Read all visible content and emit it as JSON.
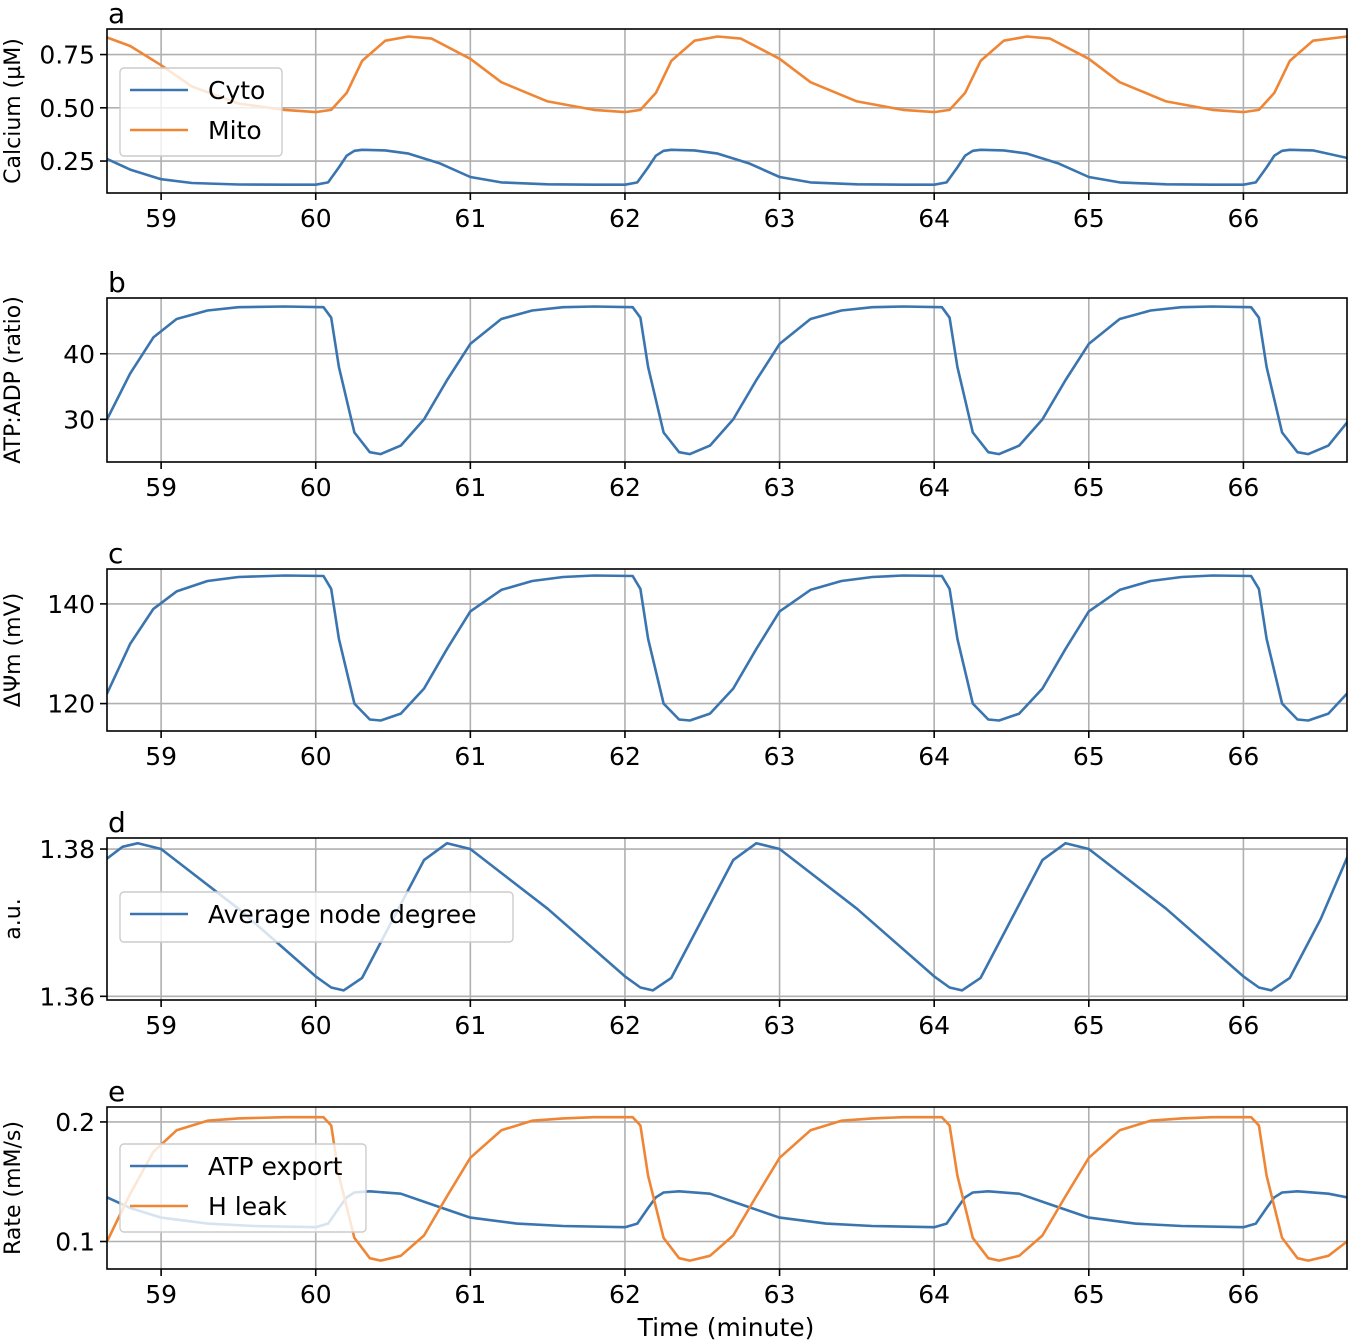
{
  "figure": {
    "xlabel": "Time (minute)",
    "colors": {
      "blue": "#3a75af",
      "orange": "#ef8636",
      "grid": "#b0b0b0"
    }
  },
  "chart_data": [
    {
      "panel": "a",
      "type": "line",
      "ylabel": "Calcium (µM)",
      "xlim": [
        58.65,
        66.67
      ],
      "ylim": [
        0.1,
        0.87
      ],
      "xticks": [
        59,
        60,
        61,
        62,
        63,
        64,
        65,
        66
      ],
      "yticks": [
        0.25,
        0.5,
        0.75
      ],
      "ytick_labels": [
        "0.25",
        "0.50",
        "0.75"
      ],
      "grid": true,
      "legend": "upper-left",
      "series": [
        {
          "name": "Cyto",
          "color": "#3a75af",
          "x": [
            58.65,
            58.8,
            59.0,
            59.2,
            59.5,
            59.8,
            60.0,
            60.08,
            60.15,
            60.2,
            60.25,
            60.3,
            60.45,
            60.6,
            60.8,
            61.0,
            61.2,
            61.5,
            61.8,
            62.0,
            62.08,
            62.15,
            62.2,
            62.25,
            62.3,
            62.45,
            62.6,
            62.8,
            63.0,
            63.2,
            63.5,
            63.8,
            64.0,
            64.08,
            64.15,
            64.2,
            64.25,
            64.3,
            64.45,
            64.6,
            64.8,
            65.0,
            65.2,
            65.5,
            65.8,
            66.0,
            66.08,
            66.15,
            66.2,
            66.25,
            66.3,
            66.45,
            66.67
          ],
          "y": [
            0.26,
            0.21,
            0.165,
            0.147,
            0.14,
            0.139,
            0.139,
            0.15,
            0.22,
            0.275,
            0.298,
            0.303,
            0.3,
            0.285,
            0.24,
            0.175,
            0.15,
            0.141,
            0.139,
            0.139,
            0.15,
            0.22,
            0.275,
            0.298,
            0.303,
            0.3,
            0.285,
            0.24,
            0.175,
            0.15,
            0.141,
            0.139,
            0.139,
            0.15,
            0.22,
            0.275,
            0.298,
            0.303,
            0.3,
            0.285,
            0.24,
            0.175,
            0.15,
            0.141,
            0.139,
            0.139,
            0.15,
            0.22,
            0.275,
            0.298,
            0.303,
            0.3,
            0.265
          ]
        },
        {
          "name": "Mito",
          "color": "#ef8636",
          "x": [
            58.65,
            58.8,
            59.0,
            59.2,
            59.5,
            59.8,
            60.0,
            60.1,
            60.2,
            60.3,
            60.45,
            60.6,
            60.75,
            61.0,
            61.2,
            61.5,
            61.8,
            62.0,
            62.1,
            62.2,
            62.3,
            62.45,
            62.6,
            62.75,
            63.0,
            63.2,
            63.5,
            63.8,
            64.0,
            64.1,
            64.2,
            64.3,
            64.45,
            64.6,
            64.75,
            65.0,
            65.2,
            65.5,
            65.8,
            66.0,
            66.1,
            66.2,
            66.3,
            66.45,
            66.67
          ],
          "y": [
            0.83,
            0.79,
            0.7,
            0.6,
            0.52,
            0.49,
            0.48,
            0.49,
            0.57,
            0.72,
            0.815,
            0.835,
            0.825,
            0.73,
            0.62,
            0.53,
            0.49,
            0.48,
            0.49,
            0.57,
            0.72,
            0.815,
            0.835,
            0.825,
            0.73,
            0.62,
            0.53,
            0.49,
            0.48,
            0.49,
            0.57,
            0.72,
            0.815,
            0.835,
            0.825,
            0.73,
            0.62,
            0.53,
            0.49,
            0.48,
            0.49,
            0.57,
            0.72,
            0.815,
            0.835
          ]
        }
      ]
    },
    {
      "panel": "b",
      "type": "line",
      "ylabel": "ATP:ADP (ratio)",
      "xlim": [
        58.65,
        66.67
      ],
      "ylim": [
        23.5,
        48.5
      ],
      "xticks": [
        59,
        60,
        61,
        62,
        63,
        64,
        65,
        66
      ],
      "yticks": [
        30,
        40
      ],
      "ytick_labels": [
        "30",
        "40"
      ],
      "grid": true,
      "series": [
        {
          "name": "",
          "color": "#3a75af",
          "x": [
            58.65,
            58.8,
            58.95,
            59.1,
            59.3,
            59.5,
            59.8,
            60.05,
            60.1,
            60.15,
            60.25,
            60.35,
            60.42,
            60.55,
            60.7,
            60.85,
            61.0,
            61.2,
            61.4,
            61.6,
            61.8,
            62.05,
            62.1,
            62.15,
            62.25,
            62.35,
            62.42,
            62.55,
            62.7,
            62.85,
            63.0,
            63.2,
            63.4,
            63.6,
            63.8,
            64.05,
            64.1,
            64.15,
            64.25,
            64.35,
            64.42,
            64.55,
            64.7,
            64.85,
            65.0,
            65.2,
            65.4,
            65.6,
            65.8,
            66.05,
            66.1,
            66.15,
            66.25,
            66.35,
            66.42,
            66.55,
            66.67
          ],
          "y": [
            30,
            37,
            42.5,
            45.3,
            46.6,
            47.1,
            47.2,
            47.1,
            45.5,
            38,
            28,
            25,
            24.7,
            26,
            30,
            36,
            41.5,
            45.3,
            46.6,
            47.1,
            47.2,
            47.1,
            45.5,
            38,
            28,
            25,
            24.7,
            26,
            30,
            36,
            41.5,
            45.3,
            46.6,
            47.1,
            47.2,
            47.1,
            45.5,
            38,
            28,
            25,
            24.7,
            26,
            30,
            36,
            41.5,
            45.3,
            46.6,
            47.1,
            47.2,
            47.1,
            45.5,
            38,
            28,
            25,
            24.7,
            26,
            29.5
          ]
        }
      ]
    },
    {
      "panel": "c",
      "type": "line",
      "ylabel": "ΔΨm (mV)",
      "xlim": [
        58.65,
        66.67
      ],
      "ylim": [
        114.5,
        147
      ],
      "xticks": [
        59,
        60,
        61,
        62,
        63,
        64,
        65,
        66
      ],
      "yticks": [
        120,
        140
      ],
      "ytick_labels": [
        "120",
        "140"
      ],
      "grid": true,
      "series": [
        {
          "name": "",
          "color": "#3a75af",
          "x": [
            58.65,
            58.8,
            58.95,
            59.1,
            59.3,
            59.5,
            59.8,
            60.05,
            60.1,
            60.15,
            60.25,
            60.35,
            60.42,
            60.55,
            60.7,
            60.85,
            61.0,
            61.2,
            61.4,
            61.6,
            61.8,
            62.05,
            62.1,
            62.15,
            62.25,
            62.35,
            62.42,
            62.55,
            62.7,
            62.85,
            63.0,
            63.2,
            63.4,
            63.6,
            63.8,
            64.05,
            64.1,
            64.15,
            64.25,
            64.35,
            64.42,
            64.55,
            64.7,
            64.85,
            65.0,
            65.2,
            65.4,
            65.6,
            65.8,
            66.05,
            66.1,
            66.15,
            66.25,
            66.35,
            66.42,
            66.55,
            66.67
          ],
          "y": [
            122,
            132,
            139,
            142.5,
            144.6,
            145.4,
            145.7,
            145.6,
            143,
            133,
            120,
            116.8,
            116.6,
            118,
            123,
            131,
            138.5,
            142.8,
            144.6,
            145.4,
            145.7,
            145.6,
            143,
            133,
            120,
            116.8,
            116.6,
            118,
            123,
            131,
            138.5,
            142.8,
            144.6,
            145.4,
            145.7,
            145.6,
            143,
            133,
            120,
            116.8,
            116.6,
            118,
            123,
            131,
            138.5,
            142.8,
            144.6,
            145.4,
            145.7,
            145.6,
            143,
            133,
            120,
            116.8,
            116.6,
            118,
            122
          ]
        }
      ]
    },
    {
      "panel": "d",
      "type": "line",
      "ylabel": "a.u.",
      "xlim": [
        58.65,
        66.67
      ],
      "ylim": [
        1.3595,
        1.3815
      ],
      "xticks": [
        59,
        60,
        61,
        62,
        63,
        64,
        65,
        66
      ],
      "yticks": [
        1.36,
        1.38
      ],
      "ytick_labels": [
        "1.36",
        "1.38"
      ],
      "grid": true,
      "legend": "center-left",
      "series": [
        {
          "name": "Average node degree",
          "color": "#3a75af",
          "x": [
            58.65,
            58.75,
            58.85,
            59.0,
            59.5,
            60.0,
            60.1,
            60.18,
            60.3,
            60.5,
            60.7,
            60.85,
            61.0,
            61.5,
            62.0,
            62.1,
            62.18,
            62.3,
            62.5,
            62.7,
            62.85,
            63.0,
            63.5,
            64.0,
            64.1,
            64.18,
            64.3,
            64.5,
            64.7,
            64.85,
            65.0,
            65.5,
            66.0,
            66.1,
            66.18,
            66.3,
            66.5,
            66.67
          ],
          "y": [
            1.3787,
            1.3803,
            1.3808,
            1.38,
            1.3719,
            1.3627,
            1.3612,
            1.3608,
            1.3625,
            1.3705,
            1.3785,
            1.3808,
            1.38,
            1.3719,
            1.3627,
            1.3612,
            1.3608,
            1.3625,
            1.3705,
            1.3785,
            1.3808,
            1.38,
            1.3719,
            1.3627,
            1.3612,
            1.3608,
            1.3625,
            1.3705,
            1.3785,
            1.3808,
            1.38,
            1.3719,
            1.3627,
            1.3612,
            1.3608,
            1.3625,
            1.3705,
            1.3788
          ]
        }
      ]
    },
    {
      "panel": "e",
      "type": "line",
      "ylabel": "Rate (mM/s)",
      "xlim": [
        58.65,
        66.67
      ],
      "ylim": [
        0.077,
        0.2125
      ],
      "xticks": [
        59,
        60,
        61,
        62,
        63,
        64,
        65,
        66
      ],
      "yticks": [
        0.1,
        0.2
      ],
      "ytick_labels": [
        "0.1",
        "0.2"
      ],
      "grid": true,
      "legend": "center-left",
      "series": [
        {
          "name": "ATP export",
          "color": "#3a75af",
          "x": [
            58.65,
            58.8,
            59.0,
            59.3,
            59.6,
            60.0,
            60.08,
            60.15,
            60.2,
            60.25,
            60.35,
            60.55,
            60.75,
            61.0,
            61.3,
            61.6,
            62.0,
            62.08,
            62.15,
            62.2,
            62.25,
            62.35,
            62.55,
            62.75,
            63.0,
            63.3,
            63.6,
            64.0,
            64.08,
            64.15,
            64.2,
            64.25,
            64.35,
            64.55,
            64.75,
            65.0,
            65.3,
            65.6,
            66.0,
            66.08,
            66.15,
            66.2,
            66.25,
            66.35,
            66.55,
            66.67
          ],
          "y": [
            0.137,
            0.128,
            0.12,
            0.115,
            0.113,
            0.112,
            0.115,
            0.128,
            0.137,
            0.141,
            0.142,
            0.14,
            0.131,
            0.12,
            0.115,
            0.113,
            0.112,
            0.115,
            0.128,
            0.137,
            0.141,
            0.142,
            0.14,
            0.131,
            0.12,
            0.115,
            0.113,
            0.112,
            0.115,
            0.128,
            0.137,
            0.141,
            0.142,
            0.14,
            0.131,
            0.12,
            0.115,
            0.113,
            0.112,
            0.115,
            0.128,
            0.137,
            0.141,
            0.142,
            0.14,
            0.137
          ]
        },
        {
          "name": "H leak",
          "color": "#ef8636",
          "x": [
            58.65,
            58.8,
            58.95,
            59.1,
            59.3,
            59.5,
            59.8,
            60.05,
            60.1,
            60.15,
            60.25,
            60.35,
            60.42,
            60.55,
            60.7,
            60.85,
            61.0,
            61.2,
            61.4,
            61.6,
            61.8,
            62.05,
            62.1,
            62.15,
            62.25,
            62.35,
            62.42,
            62.55,
            62.7,
            62.85,
            63.0,
            63.2,
            63.4,
            63.6,
            63.8,
            64.05,
            64.1,
            64.15,
            64.25,
            64.35,
            64.42,
            64.55,
            64.7,
            64.85,
            65.0,
            65.2,
            65.4,
            65.6,
            65.8,
            66.05,
            66.1,
            66.15,
            66.25,
            66.35,
            66.42,
            66.55,
            66.67
          ],
          "y": [
            0.1,
            0.14,
            0.175,
            0.193,
            0.201,
            0.203,
            0.204,
            0.204,
            0.197,
            0.155,
            0.103,
            0.086,
            0.084,
            0.088,
            0.105,
            0.138,
            0.17,
            0.193,
            0.201,
            0.203,
            0.204,
            0.204,
            0.197,
            0.155,
            0.103,
            0.086,
            0.084,
            0.088,
            0.105,
            0.138,
            0.17,
            0.193,
            0.201,
            0.203,
            0.204,
            0.204,
            0.197,
            0.155,
            0.103,
            0.086,
            0.084,
            0.088,
            0.105,
            0.138,
            0.17,
            0.193,
            0.201,
            0.203,
            0.204,
            0.204,
            0.197,
            0.155,
            0.103,
            0.086,
            0.084,
            0.088,
            0.1
          ]
        }
      ]
    }
  ]
}
